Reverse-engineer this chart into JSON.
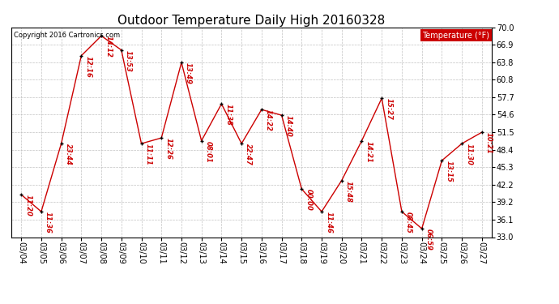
{
  "title": "Outdoor Temperature Daily High 20160328",
  "copyright": "Copyright 2016 Cartronics.com",
  "legend_label": "Temperature (°F)",
  "dates": [
    "03/04",
    "03/05",
    "03/06",
    "03/07",
    "03/08",
    "03/09",
    "03/10",
    "03/11",
    "03/12",
    "03/13",
    "03/14",
    "03/15",
    "03/16",
    "03/17",
    "03/18",
    "03/19",
    "03/20",
    "03/21",
    "03/22",
    "03/23",
    "03/24",
    "03/25",
    "03/26",
    "03/27"
  ],
  "temps": [
    40.5,
    37.5,
    49.5,
    65.0,
    68.5,
    66.0,
    49.5,
    50.5,
    63.8,
    50.0,
    56.5,
    49.5,
    55.5,
    54.5,
    41.5,
    37.5,
    43.0,
    50.0,
    57.5,
    37.5,
    34.5,
    46.5,
    49.5,
    51.5
  ],
  "times": [
    "11:20",
    "11:36",
    "23:44",
    "12:16",
    "14:12",
    "13:53",
    "11:11",
    "12:26",
    "13:49",
    "08:01",
    "11:38",
    "22:47",
    "14:22",
    "14:40",
    "00:00",
    "11:46",
    "15:48",
    "14:21",
    "15:27",
    "08:45",
    "06:59",
    "13:15",
    "11:30",
    "10:21"
  ],
  "ylim": [
    33.0,
    70.0
  ],
  "yticks": [
    33.0,
    36.1,
    39.2,
    42.2,
    45.3,
    48.4,
    51.5,
    54.6,
    57.7,
    60.8,
    63.8,
    66.9,
    70.0
  ],
  "line_color": "#cc0000",
  "marker_color": "#000000",
  "annotation_color": "#cc0000",
  "background_color": "#ffffff",
  "grid_color": "#bbbbbb",
  "title_fontsize": 11,
  "annotation_fontsize": 6,
  "tick_fontsize": 7,
  "copyright_fontsize": 6,
  "legend_fontsize": 7,
  "legend_bg": "#cc0000",
  "legend_text_color": "#ffffff"
}
